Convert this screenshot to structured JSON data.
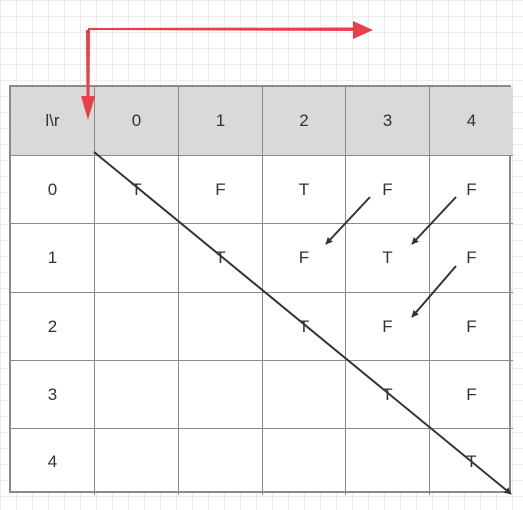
{
  "table": {
    "corner": "l\\r",
    "col_headers": [
      "0",
      "1",
      "2",
      "3",
      "4"
    ],
    "rows": [
      {
        "label": "0",
        "cells": [
          "T",
          "F",
          "T",
          "F",
          "F"
        ]
      },
      {
        "label": "1",
        "cells": [
          "",
          "T",
          "F",
          "T",
          "F"
        ]
      },
      {
        "label": "2",
        "cells": [
          "",
          "",
          "T",
          "F",
          "F"
        ]
      },
      {
        "label": "3",
        "cells": [
          "",
          "",
          "",
          "T",
          "F"
        ]
      },
      {
        "label": "4",
        "cells": [
          "",
          "",
          "",
          "",
          "T"
        ]
      }
    ]
  },
  "colors": {
    "grid_border": "#8a8a8a",
    "header_bg": "#d9d9d9",
    "red_arrow": "#e8404a",
    "black_arrow": "#333333"
  }
}
